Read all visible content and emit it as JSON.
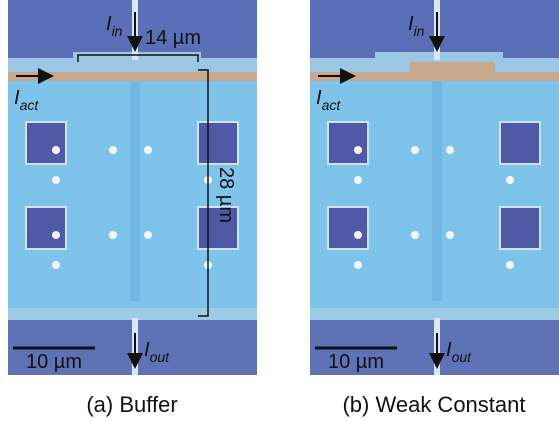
{
  "panels": [
    {
      "caption": "(a) Buffer",
      "input_label": {
        "symbol": "I",
        "subscript": "in"
      },
      "actuation_label": {
        "symbol": "I",
        "subscript": "act"
      },
      "output_label": {
        "symbol": "I",
        "subscript": "out"
      },
      "width_label": "14 µm",
      "height_label": "28 µm",
      "scale_bar": "10 µm"
    },
    {
      "caption": "(b) Weak Constant",
      "input_label": {
        "symbol": "I",
        "subscript": "in"
      },
      "actuation_label": {
        "symbol": "I",
        "subscript": "act"
      },
      "output_label": {
        "symbol": "I",
        "subscript": "out"
      },
      "scale_bar": "10 µm"
    }
  ]
}
